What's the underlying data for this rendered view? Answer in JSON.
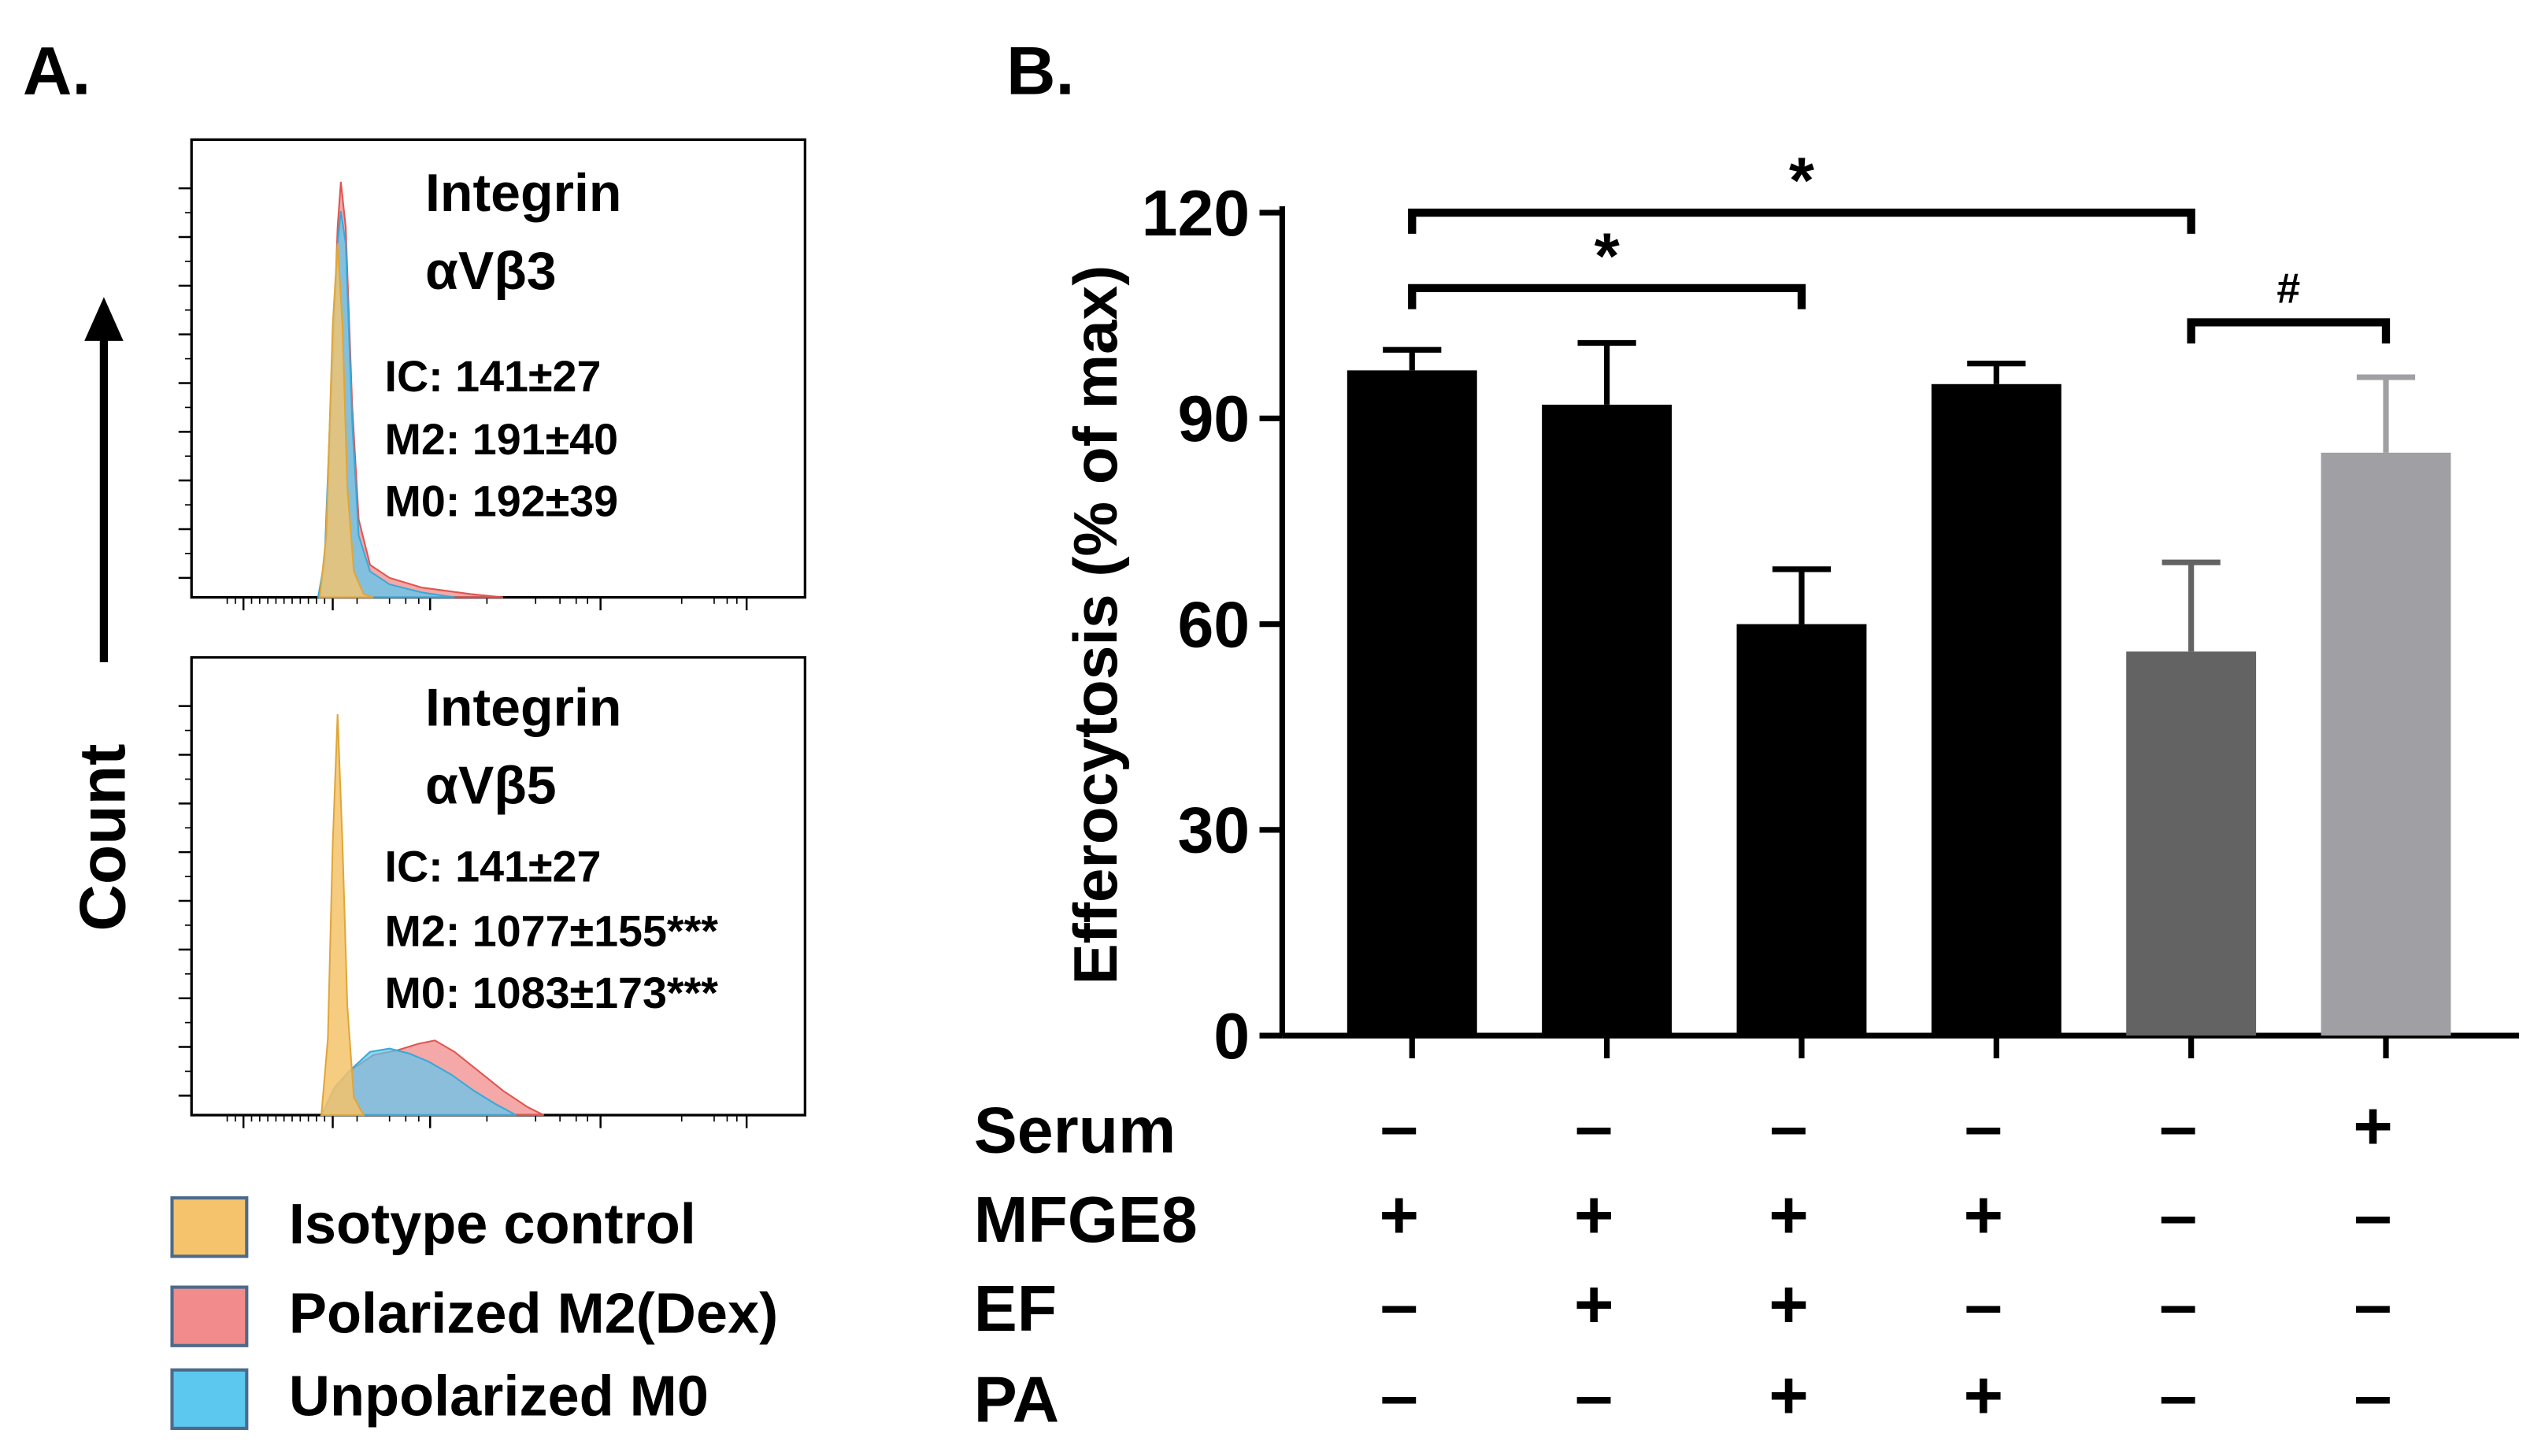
{
  "panel_a": {
    "label": "A.",
    "y_axis_label": "Count",
    "legend": [
      {
        "label": "Isotype control",
        "color": "#f5c36b"
      },
      {
        "label": "Polarized M2(Dex)",
        "color": "#f28b8b"
      },
      {
        "label": "Unpolarized M0",
        "color": "#5cc8ef"
      }
    ]
  },
  "panel_b": {
    "label": "B.",
    "conditions": [
      {
        "name": "Serum",
        "signs": [
          "–",
          "–",
          "–",
          "–",
          "–",
          "+"
        ]
      },
      {
        "name": "MFGE8",
        "signs": [
          "+",
          "+",
          "+",
          "+",
          "–",
          "–"
        ]
      },
      {
        "name": "EF",
        "signs": [
          "–",
          "+",
          "+",
          "–",
          "–",
          "–"
        ]
      },
      {
        "name": "PA",
        "signs": [
          "–",
          "–",
          "+",
          "+",
          "–",
          "–"
        ]
      }
    ],
    "significance": [
      {
        "from": 0,
        "to": 4,
        "symbol": "*",
        "y": 120
      },
      {
        "from": 0,
        "to": 2,
        "symbol": "*",
        "y": 109
      },
      {
        "from": 4,
        "to": 5,
        "symbol": "#",
        "y": 104
      }
    ]
  },
  "chart_data": [
    {
      "type": "area",
      "title": "Integrin\nαVβ3",
      "annotations": [
        "IC: 141±27",
        "M2: 191±40",
        "M0: 192±39"
      ],
      "series": [
        {
          "name": "Isotype control",
          "color": "#f5c36b"
        },
        {
          "name": "Polarized M2(Dex)",
          "color": "#f28b8b"
        },
        {
          "name": "Unpolarized M0",
          "color": "#5cc8ef"
        }
      ]
    },
    {
      "type": "area",
      "title": "Integrin\nαVβ5",
      "annotations": [
        "IC: 141±27",
        "M2: 1077±155***",
        "M0: 1083±173***"
      ],
      "series": [
        {
          "name": "Isotype control",
          "color": "#f5c36b"
        },
        {
          "name": "Polarized M2(Dex)",
          "color": "#f28b8b"
        },
        {
          "name": "Unpolarized M0",
          "color": "#5cc8ef"
        }
      ]
    },
    {
      "type": "bar",
      "ylabel": "Efferocytosis (% of max)",
      "ylim": [
        0,
        120
      ],
      "yticks": [
        0,
        30,
        60,
        90,
        120
      ],
      "values": [
        97,
        92,
        60,
        95,
        56,
        85
      ],
      "errors": [
        3,
        9,
        8,
        3,
        13,
        11
      ],
      "colors": [
        "#000000",
        "#000000",
        "#000000",
        "#000000",
        "#636363",
        "#a0a0a4"
      ]
    }
  ]
}
